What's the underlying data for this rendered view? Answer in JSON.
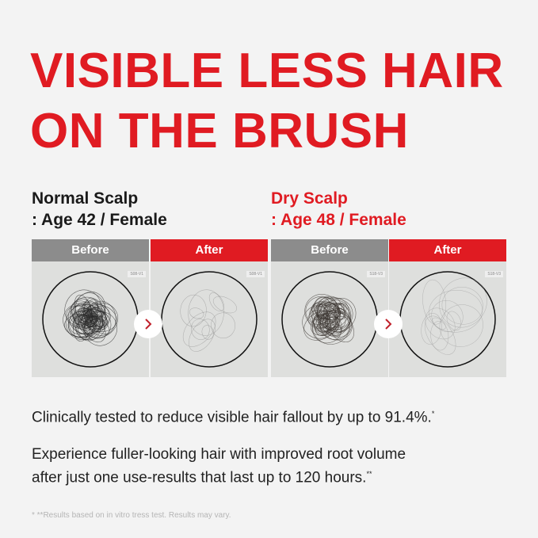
{
  "title": {
    "line1": "VISIBLE LESS HAIR",
    "line2": "ON THE BRUSH"
  },
  "groups": [
    {
      "name": "Normal Scalp",
      "detail": ": Age 42 / Female",
      "before_label": "Before",
      "after_label": "After",
      "sample_tag": "S08-V1"
    },
    {
      "name": "Dry Scalp",
      "detail": ": Age 48 / Female",
      "before_label": "Before",
      "after_label": "After",
      "sample_tag": "S18-V3"
    }
  ],
  "claims": {
    "claim1": "Clinically tested to reduce visible hair fallout by up to 91.4%.",
    "claim1_mark": "*",
    "claim2_line1": "Experience fuller-looking hair with improved root volume",
    "claim2_line2": "after just one use-results that last up to 120 hours.",
    "claim2_mark": "**"
  },
  "footnote": "* **Results based on in vitro tress test. Results may vary.",
  "colors": {
    "accent": "#e01b22",
    "before_bar": "#8c8c8c",
    "background": "#f3f3f3"
  },
  "icons": {
    "arrow": "chevron-right-icon"
  }
}
